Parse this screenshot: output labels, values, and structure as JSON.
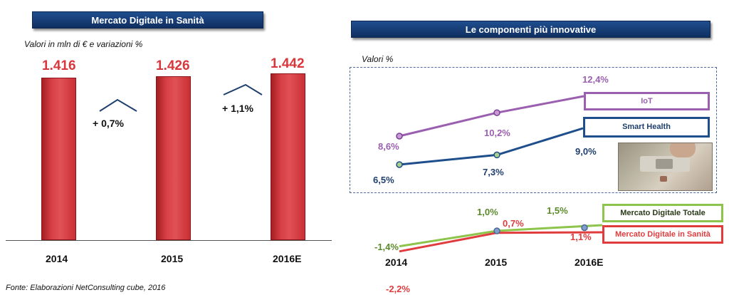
{
  "left_panel": {
    "title": "Mercato Digitale in Sanità",
    "subtitle": "Valori in mln di € e variazioni %",
    "source": "Fonte: Elaborazioni NetConsulting cube, 2016"
  },
  "right_panel": {
    "title": "Le componenti più innovative",
    "subtitle": "Valori %"
  },
  "colors": {
    "banner": "#163b73",
    "bar": "#d9373b",
    "iot": "#9b5fb0",
    "smart_health": "#1f4e8c",
    "mercato_totale": "#8dc44b",
    "mercato_sanita": "#e03c3e"
  },
  "chart_data": [
    {
      "type": "bar",
      "title": "Mercato Digitale in Sanità",
      "subtitle": "Valori in mln di € e variazioni %",
      "categories": [
        "2014",
        "2015",
        "2016E"
      ],
      "values": [
        1416,
        1426,
        1442
      ],
      "value_labels": [
        "1.416",
        "1.426",
        "1.442"
      ],
      "variations": [
        "+ 0,7%",
        "+ 1,1%"
      ],
      "ylim": [
        0,
        1600
      ]
    },
    {
      "type": "line",
      "title": "Le componenti più innovative",
      "subtitle": "Valori %",
      "categories": [
        "2014",
        "2015",
        "2016E"
      ],
      "series": [
        {
          "name": "IoT",
          "values": [
            8.6,
            10.2,
            12.4
          ],
          "labels": [
            "8,6%",
            "10,2%",
            "12,4%"
          ]
        },
        {
          "name": "Smart Health",
          "values": [
            6.5,
            7.3,
            9.0
          ],
          "labels": [
            "6,5%",
            "7,3%",
            "9,0%"
          ]
        }
      ]
    },
    {
      "type": "line",
      "categories": [
        "2014",
        "2015",
        "2016E"
      ],
      "series": [
        {
          "name": "Mercato Digitale Totale",
          "values": [
            -1.4,
            1.0,
            1.5
          ],
          "labels": [
            "-1,4%",
            "1,0%",
            "1,5%"
          ]
        },
        {
          "name": "Mercato Digitale in Sanità",
          "values": [
            -2.2,
            0.7,
            1.1
          ],
          "labels": [
            "-2,2%",
            "0,7%",
            "1,1%"
          ]
        }
      ]
    }
  ]
}
